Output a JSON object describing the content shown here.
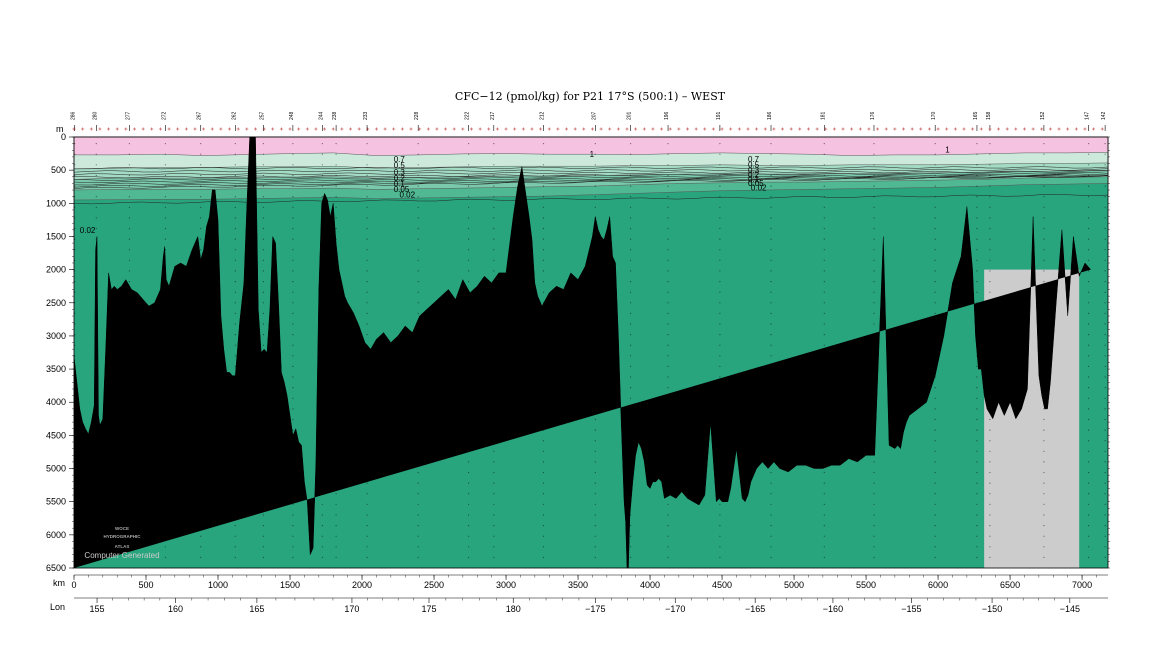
{
  "chart_data": {
    "type": "area",
    "title": "CFC−12 (pmol/kg) for P21 17°S (500:1) – WEST",
    "yunit": "m",
    "xunit": "km",
    "lonlabel": "Lon",
    "xlim": [
      0,
      7180
    ],
    "ylim": [
      0,
      6500
    ],
    "y_inverted": true,
    "depth_ticks": [
      0,
      500,
      1000,
      1500,
      2000,
      2500,
      3000,
      3500,
      4000,
      4500,
      5000,
      5500,
      6000,
      6500
    ],
    "km_ticks": [
      0,
      500,
      1000,
      1500,
      2000,
      2500,
      3000,
      3500,
      4000,
      4500,
      5000,
      5500,
      6000,
      6500,
      7000
    ],
    "lon_ticks": [
      {
        "km": 160,
        "label": "155"
      },
      {
        "km": 705,
        "label": "160"
      },
      {
        "km": 1270,
        "label": "165"
      },
      {
        "km": 1930,
        "label": "170"
      },
      {
        "km": 2465,
        "label": "175"
      },
      {
        "km": 3050,
        "label": "180"
      },
      {
        "km": 3620,
        "label": "−175"
      },
      {
        "km": 4175,
        "label": "−170"
      },
      {
        "km": 4730,
        "label": "−165"
      },
      {
        "km": 5270,
        "label": "−160"
      },
      {
        "km": 5815,
        "label": "−155"
      },
      {
        "km": 6375,
        "label": "−150"
      },
      {
        "km": 6915,
        "label": "−145"
      }
    ],
    "stations": [
      {
        "km": 5,
        "label": "286"
      },
      {
        "km": 155,
        "label": "280"
      },
      {
        "km": 385,
        "label": "277"
      },
      {
        "km": 635,
        "label": "272"
      },
      {
        "km": 880,
        "label": "267"
      },
      {
        "km": 1120,
        "label": "262"
      },
      {
        "km": 1315,
        "label": "257"
      },
      {
        "km": 1520,
        "label": "248"
      },
      {
        "km": 1725,
        "label": "244"
      },
      {
        "km": 1820,
        "label": "238"
      },
      {
        "km": 2035,
        "label": "233"
      },
      {
        "km": 2390,
        "label": "228"
      },
      {
        "km": 2740,
        "label": "222"
      },
      {
        "km": 2915,
        "label": "217"
      },
      {
        "km": 3260,
        "label": "212"
      },
      {
        "km": 3620,
        "label": "207"
      },
      {
        "km": 3865,
        "label": "201"
      },
      {
        "km": 4125,
        "label": "196"
      },
      {
        "km": 4485,
        "label": "191"
      },
      {
        "km": 4840,
        "label": "186"
      },
      {
        "km": 5210,
        "label": "181"
      },
      {
        "km": 5555,
        "label": "176"
      },
      {
        "km": 5980,
        "label": "170"
      },
      {
        "km": 6270,
        "label": "165"
      },
      {
        "km": 6360,
        "label": "158"
      },
      {
        "km": 6735,
        "label": "152"
      },
      {
        "km": 7045,
        "label": "147"
      },
      {
        "km": 7160,
        "label": "142"
      }
    ],
    "value_layers": [
      {
        "min_value": 0.7,
        "color": "#f6c2e1"
      },
      {
        "min_value": 0.5,
        "color": "#cce9dc"
      },
      {
        "min_value": 0.3,
        "color": "#a3dbc5"
      },
      {
        "min_value": 0.15,
        "color": "#7bc9ad"
      },
      {
        "min_value": 0.06,
        "color": "#50b893"
      },
      {
        "min_value": 0.0,
        "color": "#29a57e"
      }
    ],
    "layer_interface_depths_m": {
      "x_km": [
        0,
        300,
        600,
        900,
        1200,
        1500,
        1800,
        2100,
        2400,
        2700,
        3000,
        3300,
        3600,
        3900,
        4200,
        4500,
        4800,
        5100,
        5400,
        5700,
        6000,
        6300,
        6600,
        6900,
        7180
      ],
      "d_0_7": [
        270,
        270,
        260,
        280,
        265,
        250,
        240,
        280,
        270,
        255,
        250,
        260,
        260,
        265,
        250,
        240,
        250,
        260,
        280,
        270,
        270,
        255,
        240,
        240,
        230
      ],
      "d_0_5": [
        480,
        470,
        460,
        460,
        450,
        450,
        440,
        470,
        460,
        450,
        440,
        440,
        440,
        430,
        430,
        420,
        430,
        430,
        420,
        420,
        420,
        410,
        400,
        400,
        390
      ],
      "d_0_3": [
        640,
        620,
        620,
        620,
        610,
        610,
        600,
        620,
        610,
        600,
        590,
        590,
        580,
        570,
        560,
        560,
        560,
        560,
        550,
        550,
        540,
        530,
        520,
        510,
        500
      ],
      "d_0_15": [
        800,
        790,
        790,
        790,
        780,
        780,
        770,
        790,
        780,
        770,
        760,
        750,
        740,
        720,
        700,
        690,
        680,
        680,
        670,
        660,
        650,
        640,
        620,
        610,
        600
      ],
      "d_0_06": [
        950,
        945,
        940,
        940,
        930,
        920,
        910,
        930,
        920,
        910,
        900,
        890,
        870,
        850,
        830,
        810,
        800,
        790,
        780,
        770,
        760,
        740,
        720,
        710,
        700
      ]
    },
    "contour_lines": {
      "count": 10,
      "top_depth_m": [
        420,
        415,
        410,
        405,
        400,
        395,
        385,
        375,
        365,
        350
      ],
      "bottom_depth_m": [
        1000,
        980,
        960,
        940,
        920,
        900,
        880,
        860,
        840,
        820
      ]
    },
    "contour_labels": [
      {
        "km": 2220,
        "depth": 380,
        "text": "0.7"
      },
      {
        "km": 2220,
        "depth": 470,
        "text": "0.5"
      },
      {
        "km": 2220,
        "depth": 570,
        "text": "0.3"
      },
      {
        "km": 2220,
        "depth": 660,
        "text": "0.2"
      },
      {
        "km": 2220,
        "depth": 750,
        "text": "0.1"
      },
      {
        "km": 2220,
        "depth": 830,
        "text": "0.05"
      },
      {
        "km": 2260,
        "depth": 910,
        "text": "0.02"
      },
      {
        "km": 4680,
        "depth": 380,
        "text": "0.7"
      },
      {
        "km": 4680,
        "depth": 460,
        "text": "0.5"
      },
      {
        "km": 4680,
        "depth": 540,
        "text": "0.3"
      },
      {
        "km": 4680,
        "depth": 610,
        "text": "0.2"
      },
      {
        "km": 4680,
        "depth": 680,
        "text": "0.1"
      },
      {
        "km": 4680,
        "depth": 740,
        "text": "0.05"
      },
      {
        "km": 4700,
        "depth": 810,
        "text": "0.02"
      },
      {
        "km": 3580,
        "depth": 300,
        "text": "1"
      },
      {
        "km": 6050,
        "depth": 230,
        "text": "1"
      },
      {
        "km": 40,
        "depth": 1450,
        "text": "0.02"
      }
    ],
    "missing_data_region": {
      "x_km_range": [
        6320,
        6980
      ],
      "top_depth_m": 2000,
      "color": "#cccccc"
    },
    "bathymetry": {
      "fill": "#000000",
      "x_km": [
        0,
        20,
        40,
        60,
        80,
        100,
        120,
        140,
        150,
        160,
        170,
        180,
        200,
        220,
        240,
        260,
        280,
        300,
        330,
        360,
        400,
        440,
        480,
        520,
        560,
        600,
        620,
        630,
        640,
        660,
        700,
        740,
        780,
        820,
        860,
        880,
        900,
        920,
        940,
        960,
        980,
        1000,
        1020,
        1040,
        1060,
        1080,
        1100,
        1120,
        1150,
        1180,
        1200,
        1220,
        1240,
        1260,
        1280,
        1300,
        1320,
        1340,
        1360,
        1380,
        1400,
        1420,
        1440,
        1460,
        1480,
        1500,
        1520,
        1540,
        1560,
        1580,
        1600,
        1620,
        1640,
        1660,
        1680,
        1700,
        1720,
        1740,
        1760,
        1780,
        1800,
        1820,
        1840,
        1860,
        1880,
        1900,
        1940,
        1980,
        2020,
        2060,
        2100,
        2150,
        2200,
        2250,
        2300,
        2350,
        2400,
        2450,
        2500,
        2550,
        2600,
        2650,
        2700,
        2750,
        2800,
        2850,
        2900,
        2950,
        3000,
        3050,
        3080,
        3110,
        3140,
        3160,
        3180,
        3200,
        3220,
        3250,
        3300,
        3350,
        3400,
        3450,
        3500,
        3550,
        3600,
        3620,
        3640,
        3660,
        3680,
        3700,
        3720,
        3740,
        3760,
        3780,
        3800,
        3820,
        3830,
        3840,
        3850,
        3860,
        3880,
        3900,
        3920,
        3940,
        3960,
        3980,
        4000,
        4020,
        4040,
        4060,
        4080,
        4100,
        4140,
        4180,
        4220,
        4260,
        4300,
        4340,
        4380,
        4420,
        4460,
        4480,
        4500,
        4520,
        4540,
        4560,
        4600,
        4640,
        4660,
        4680,
        4700,
        4740,
        4780,
        4820,
        4860,
        4900,
        4960,
        5020,
        5080,
        5140,
        5200,
        5260,
        5320,
        5380,
        5440,
        5500,
        5560,
        5620,
        5660,
        5700,
        5720,
        5740,
        5760,
        5780,
        5800,
        5860,
        5920,
        5980,
        6040,
        6100,
        6160,
        6200,
        6240,
        6260,
        6280,
        6300,
        6320,
        6340,
        6380,
        6420,
        6460,
        6500,
        6540,
        6580,
        6620,
        6660,
        6700,
        6720,
        6740,
        6760,
        6780,
        6820,
        6860,
        6900,
        6940,
        6980,
        7020,
        7060,
        7100,
        7140,
        7180
      ],
      "depth_m": [
        3300,
        3700,
        4100,
        4300,
        4400,
        4480,
        4300,
        4050,
        1700,
        1500,
        4200,
        4350,
        4250,
        3200,
        2050,
        2300,
        2250,
        2300,
        2250,
        2150,
        2300,
        2350,
        2450,
        2550,
        2500,
        2300,
        1800,
        1650,
        2150,
        2250,
        1950,
        1900,
        1950,
        1700,
        1500,
        1850,
        1700,
        1350,
        1200,
        800,
        800,
        1250,
        2700,
        3200,
        3550,
        3550,
        3600,
        3600,
        2800,
        2200,
        1050,
        0,
        0,
        0,
        2600,
        3250,
        3200,
        3250,
        2600,
        1500,
        1600,
        2500,
        3550,
        3700,
        3900,
        4200,
        4500,
        4400,
        4600,
        4650,
        5200,
        5500,
        6300,
        6200,
        4900,
        2300,
        1000,
        850,
        950,
        1200,
        1000,
        1600,
        2000,
        2200,
        2400,
        2500,
        2650,
        2850,
        3100,
        3200,
        3050,
        2950,
        3100,
        3000,
        2850,
        2950,
        2700,
        2600,
        2500,
        2400,
        2300,
        2450,
        2150,
        2350,
        2250,
        2100,
        2200,
        2050,
        2050,
        1200,
        750,
        450,
        900,
        1200,
        1550,
        2200,
        2400,
        2550,
        2350,
        2250,
        2300,
        2050,
        2150,
        1950,
        1500,
        1200,
        1400,
        1500,
        1550,
        1400,
        1200,
        1800,
        1900,
        3000,
        4300,
        5500,
        5800,
        6500,
        6500,
        5700,
        5200,
        4800,
        4600,
        4700,
        4900,
        5250,
        5300,
        5200,
        5200,
        5150,
        5200,
        5450,
        5400,
        5450,
        5350,
        5450,
        5500,
        5550,
        5400,
        4300,
        5500,
        5450,
        5500,
        5500,
        5500,
        5300,
        4700,
        5450,
        5500,
        5400,
        5200,
        5000,
        4900,
        5000,
        4900,
        5000,
        5050,
        4950,
        4950,
        5000,
        5000,
        4950,
        4950,
        4850,
        4900,
        4800,
        4800,
        1500,
        4650,
        4700,
        4650,
        4700,
        4450,
        4300,
        4200,
        4100,
        4000,
        3600,
        3000,
        2200,
        1800,
        1050,
        2000,
        3000,
        3500,
        3500,
        3900,
        4100,
        4250,
        4000,
        4200,
        4000,
        4250,
        4100,
        3800,
        1200,
        3600,
        3900,
        4100,
        4100,
        3700,
        2500,
        1400,
        2700,
        1500,
        2100,
        1900,
        2000
      ]
    }
  }
}
